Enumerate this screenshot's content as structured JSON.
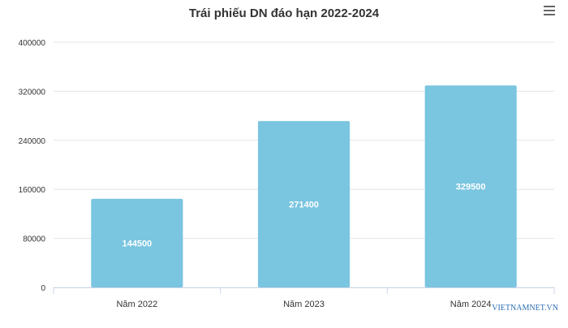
{
  "chart_data": {
    "type": "bar",
    "title": "Trái phiếu DN đáo hạn 2022-2024",
    "categories": [
      "Năm 2022",
      "Năm 2023",
      "Năm 2024"
    ],
    "values": [
      144500,
      271400,
      329500
    ],
    "data_labels": [
      "144500",
      "271400",
      "329500"
    ],
    "yticks": [
      "0",
      "80000",
      "160000",
      "240000",
      "320000",
      "400000"
    ],
    "ylim": [
      0,
      400000
    ],
    "xlabel": "",
    "ylabel": "",
    "grid": true,
    "bar_color": "#7ac5e0"
  },
  "watermark": "VIETNAMNET.VN",
  "menu_icon": "hamburger-menu-icon"
}
